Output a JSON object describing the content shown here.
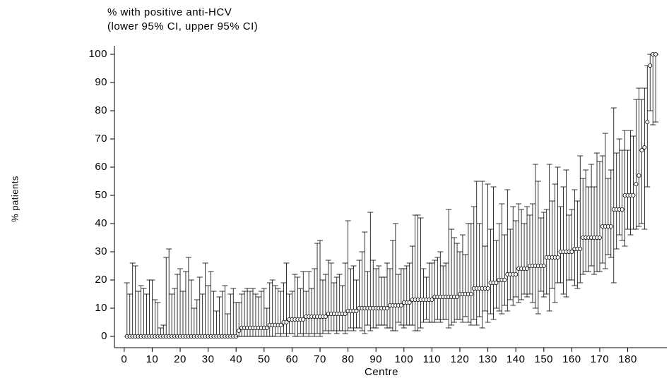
{
  "chart_data": {
    "type": "caterpillar",
    "title": "% with positive anti-HCV",
    "subtitle": "(lower 95% CI, upper 95% CI)",
    "x_label": "Centre",
    "y_label": "% patients",
    "xlim": [
      -4,
      194
    ],
    "xticks": [
      0,
      10,
      20,
      30,
      40,
      50,
      60,
      70,
      80,
      90,
      100,
      110,
      120,
      130,
      140,
      150,
      160,
      170,
      180
    ],
    "ylim": [
      -4,
      103
    ],
    "yticks": [
      0,
      10,
      20,
      30,
      40,
      50,
      60,
      70,
      80,
      90,
      100
    ],
    "color": "#000000",
    "x": [
      1,
      2,
      3,
      4,
      5,
      6,
      7,
      8,
      9,
      10,
      11,
      12,
      13,
      14,
      15,
      16,
      17,
      18,
      19,
      20,
      21,
      22,
      23,
      24,
      25,
      26,
      27,
      28,
      29,
      30,
      31,
      32,
      33,
      34,
      35,
      36,
      37,
      38,
      39,
      40,
      41,
      42,
      43,
      44,
      45,
      46,
      47,
      48,
      49,
      50,
      51,
      52,
      53,
      54,
      55,
      56,
      57,
      58,
      59,
      60,
      61,
      62,
      63,
      64,
      65,
      66,
      67,
      68,
      69,
      70,
      71,
      72,
      73,
      74,
      75,
      76,
      77,
      78,
      79,
      80,
      81,
      82,
      83,
      84,
      85,
      86,
      87,
      88,
      89,
      90,
      91,
      92,
      93,
      94,
      95,
      96,
      97,
      98,
      99,
      100,
      101,
      102,
      103,
      104,
      105,
      106,
      107,
      108,
      109,
      110,
      111,
      112,
      113,
      114,
      115,
      116,
      117,
      118,
      119,
      120,
      121,
      122,
      123,
      124,
      125,
      126,
      127,
      128,
      129,
      130,
      131,
      132,
      133,
      134,
      135,
      136,
      137,
      138,
      139,
      140,
      141,
      142,
      143,
      144,
      145,
      146,
      147,
      148,
      149,
      150,
      151,
      152,
      153,
      154,
      155,
      156,
      157,
      158,
      159,
      160,
      161,
      162,
      163,
      164,
      165,
      166,
      167,
      168,
      169,
      170,
      171,
      172,
      173,
      174,
      175,
      176,
      177,
      178,
      179,
      180,
      181,
      182,
      183,
      184,
      185,
      186,
      187,
      188,
      189,
      190
    ],
    "values": [
      0,
      0,
      0,
      0,
      0,
      0,
      0,
      0,
      0,
      0,
      0,
      0,
      0,
      0,
      0,
      0,
      0,
      0,
      0,
      0,
      0,
      0,
      0,
      0,
      0,
      0,
      0,
      0,
      0,
      0,
      0,
      0,
      0,
      0,
      0,
      0,
      0,
      0,
      0,
      0,
      2,
      3,
      3,
      3,
      3,
      3,
      3,
      3,
      3,
      3,
      3,
      4,
      4,
      4,
      4,
      4,
      5,
      5,
      6,
      6,
      6,
      6,
      6,
      6,
      7,
      7,
      7,
      7,
      7,
      7,
      7,
      7,
      8,
      8,
      8,
      8,
      8,
      8,
      8,
      9,
      9,
      9,
      9,
      10,
      10,
      10,
      10,
      10,
      10,
      10,
      10,
      10,
      10,
      10,
      11,
      11,
      11,
      11,
      11,
      12,
      12,
      12,
      13,
      13,
      13,
      13,
      13,
      13,
      13,
      13,
      14,
      14,
      14,
      14,
      14,
      14,
      14,
      14,
      14,
      15,
      15,
      15,
      15,
      15,
      17,
      17,
      17,
      17,
      17,
      17,
      19,
      19,
      19,
      20,
      20,
      20,
      22,
      22,
      22,
      22,
      24,
      24,
      24,
      24,
      25,
      25,
      25,
      25,
      25,
      25,
      28,
      28,
      28,
      28,
      28,
      30,
      30,
      30,
      30,
      30,
      31,
      31,
      31,
      35,
      35,
      35,
      35,
      35,
      35,
      35,
      39,
      39,
      39,
      39,
      45,
      45,
      45,
      45,
      50,
      50,
      50,
      50,
      54,
      57,
      66,
      67,
      76,
      96,
      100,
      100
    ],
    "lower": [
      0,
      0,
      0,
      0,
      0,
      0,
      0,
      0,
      0,
      0,
      0,
      0,
      0,
      0,
      0,
      0,
      0,
      0,
      0,
      0,
      0,
      0,
      0,
      0,
      0,
      0,
      0,
      0,
      0,
      0,
      0,
      0,
      0,
      0,
      0,
      0,
      0,
      0,
      0,
      0,
      0,
      0,
      0,
      0,
      0,
      0,
      0,
      0,
      0,
      0,
      0,
      0,
      0,
      0,
      1,
      0,
      1,
      0,
      1,
      1,
      0,
      0,
      1,
      0,
      1,
      0,
      1,
      0,
      1,
      0,
      1,
      2,
      1,
      2,
      2,
      1,
      2,
      2,
      1,
      2,
      3,
      2,
      3,
      3,
      2,
      1,
      4,
      2,
      3,
      3,
      4,
      4,
      4,
      3,
      3,
      2,
      2,
      5,
      4,
      3,
      4,
      4,
      4,
      2,
      2,
      3,
      5,
      6,
      5,
      5,
      5,
      6,
      5,
      6,
      6,
      3,
      4,
      5,
      6,
      6,
      5,
      7,
      5,
      4,
      6,
      4,
      7,
      3,
      9,
      5,
      8,
      6,
      10,
      9,
      8,
      11,
      9,
      13,
      11,
      14,
      12,
      13,
      15,
      14,
      15,
      12,
      10,
      8,
      16,
      14,
      15,
      9,
      17,
      12,
      19,
      19,
      15,
      14,
      20,
      20,
      18,
      17,
      19,
      22,
      23,
      23,
      25,
      22,
      23,
      23,
      26,
      24,
      29,
      28,
      19,
      31,
      36,
      34,
      32,
      38,
      36,
      38,
      38,
      39,
      40,
      38,
      53,
      80,
      75,
      76
    ],
    "upper": [
      19,
      15,
      26,
      25,
      16,
      18,
      17,
      15,
      20,
      20,
      13,
      12,
      3,
      4,
      28,
      31,
      15,
      17,
      22,
      24,
      16,
      23,
      28,
      20,
      10,
      13,
      21,
      15,
      26,
      18,
      23,
      16,
      9,
      14,
      16,
      18,
      8,
      15,
      17,
      12,
      12,
      15,
      16,
      17,
      16,
      17,
      15,
      14,
      16,
      17,
      10,
      19,
      20,
      18,
      17,
      16,
      19,
      26,
      15,
      16,
      22,
      21,
      17,
      23,
      16,
      23,
      17,
      24,
      33,
      34,
      20,
      22,
      27,
      26,
      19,
      21,
      22,
      18,
      26,
      41,
      24,
      25,
      20,
      27,
      30,
      37,
      23,
      44,
      27,
      24,
      25,
      21,
      21,
      26,
      24,
      34,
      40,
      22,
      24,
      24,
      25,
      26,
      32,
      43,
      43,
      42,
      24,
      21,
      26,
      26,
      27,
      28,
      30,
      25,
      26,
      45,
      38,
      35,
      33,
      30,
      36,
      29,
      40,
      40,
      46,
      55,
      40,
      55,
      32,
      54,
      38,
      53,
      34,
      40,
      47,
      36,
      52,
      38,
      46,
      41,
      47,
      45,
      40,
      46,
      43,
      47,
      61,
      55,
      42,
      44,
      45,
      61,
      48,
      54,
      60,
      46,
      53,
      59,
      43,
      45,
      52,
      48,
      64,
      56,
      59,
      53,
      61,
      53,
      65,
      62,
      64,
      72,
      56,
      59,
      81,
      65,
      70,
      66,
      73,
      66,
      73,
      71,
      84,
      88,
      84,
      88,
      96,
      100,
      100,
      100
    ]
  }
}
